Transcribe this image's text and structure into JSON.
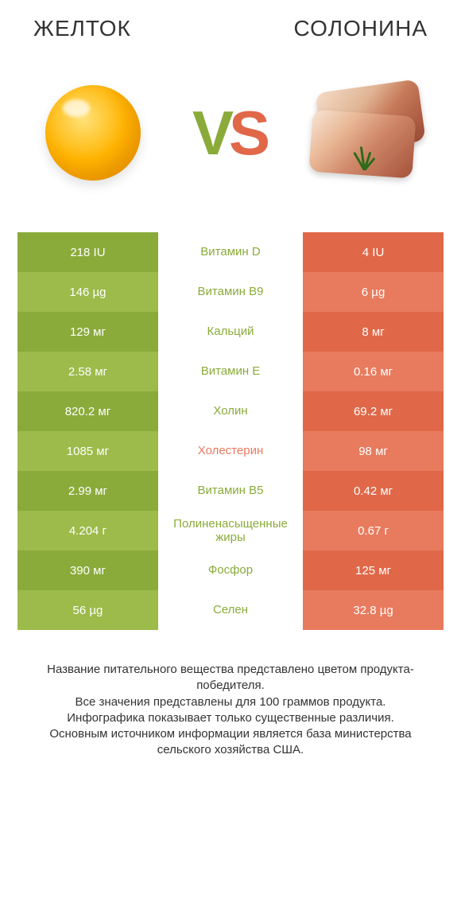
{
  "titles": {
    "left": "ЖЕЛТОК",
    "right": "СОЛОНИНА"
  },
  "vs": {
    "v_color": "#8aab3a",
    "s_color": "#e06848"
  },
  "colors": {
    "left_dark": "#8aab3a",
    "left_light": "#9cbb4a",
    "mid_green": "#8aab3a",
    "mid_red": "#ea7a5e",
    "right_dark": "#e06848",
    "right_light": "#e87b5e",
    "mid_bg": "#ffffff"
  },
  "rows": [
    {
      "left": "218 IU",
      "mid": "Витамин D",
      "right": "4 IU",
      "winner": "left"
    },
    {
      "left": "146 µg",
      "mid": "Витамин B9",
      "right": "6 µg",
      "winner": "left"
    },
    {
      "left": "129 мг",
      "mid": "Кальций",
      "right": "8 мг",
      "winner": "left"
    },
    {
      "left": "2.58 мг",
      "mid": "Витамин E",
      "right": "0.16 мг",
      "winner": "left"
    },
    {
      "left": "820.2 мг",
      "mid": "Холин",
      "right": "69.2 мг",
      "winner": "left"
    },
    {
      "left": "1085 мг",
      "mid": "Холестерин",
      "right": "98 мг",
      "winner": "right"
    },
    {
      "left": "2.99 мг",
      "mid": "Витамин B5",
      "right": "0.42 мг",
      "winner": "left"
    },
    {
      "left": "4.204 г",
      "mid": "Полиненасыщенные жиры",
      "right": "0.67 г",
      "winner": "left"
    },
    {
      "left": "390 мг",
      "mid": "Фосфор",
      "right": "125 мг",
      "winner": "left"
    },
    {
      "left": "56 µg",
      "mid": "Селен",
      "right": "32.8 µg",
      "winner": "left"
    }
  ],
  "footer": "Название питательного вещества представлено цветом продукта-победителя.\nВсе значения представлены для 100 граммов продукта.\nИнфографика показывает только существенные различия.\nОсновным источником информации является база министерства сельского хозяйства США."
}
